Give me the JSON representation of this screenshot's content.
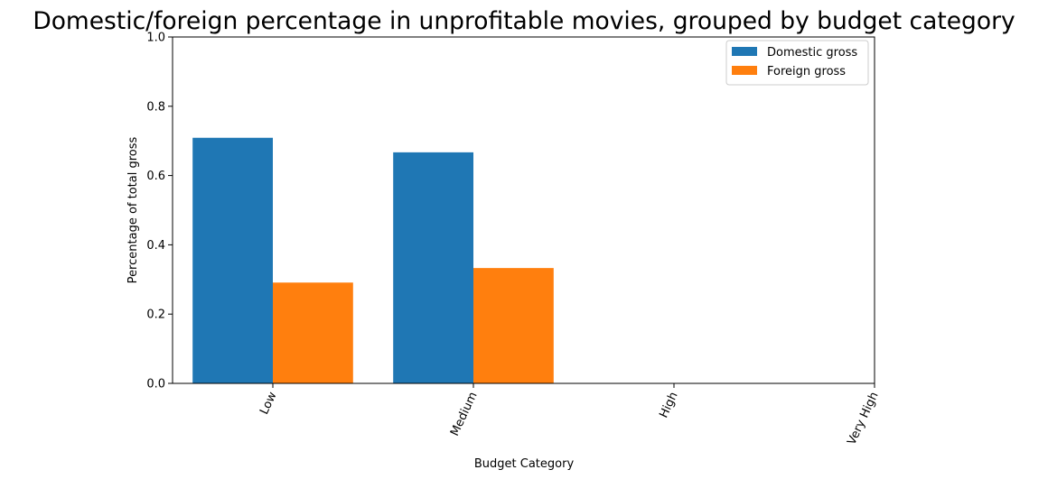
{
  "chart_data": {
    "type": "bar",
    "title": "Domestic/foreign percentage in unprofitable movies, grouped by budget category",
    "xlabel": "Budget Category",
    "ylabel": "Percentage of total gross",
    "categories": [
      "Low",
      "Medium",
      "High",
      "Very High"
    ],
    "series": [
      {
        "name": "Domestic gross",
        "color": "#1f77b4",
        "values": [
          0.709,
          0.667,
          0,
          0
        ]
      },
      {
        "name": "Foreign gross",
        "color": "#ff7f0e",
        "values": [
          0.291,
          0.333,
          0,
          0
        ]
      }
    ],
    "ylim": [
      0,
      1.0
    ],
    "yticks": [
      "0.0",
      "0.2",
      "0.4",
      "0.6",
      "0.8",
      "1.0"
    ],
    "grid": false,
    "legend_position": "top-right"
  }
}
